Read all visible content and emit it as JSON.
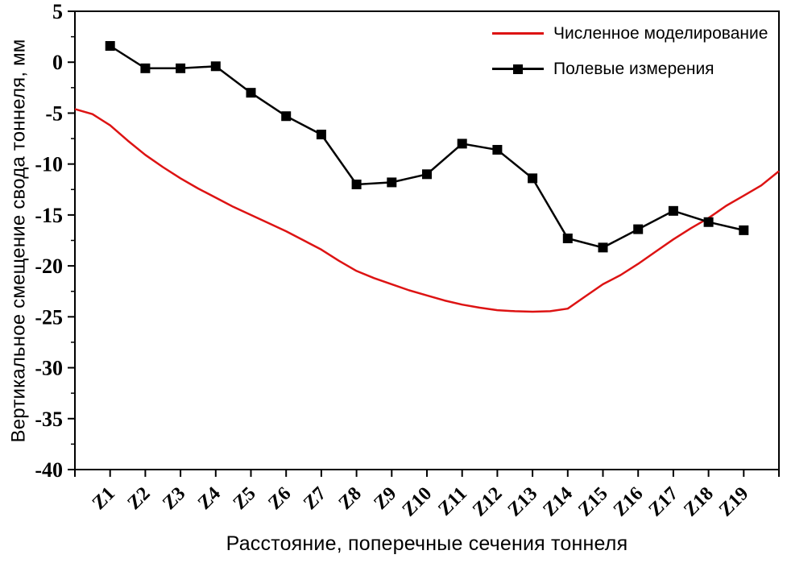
{
  "chart_data": {
    "type": "line",
    "title": "",
    "xlabel": "Расстояние, поперечные сечения тоннеля",
    "ylabel": "Вертикальное смещение свода тоннеля, мм",
    "ylim": [
      -40,
      5
    ],
    "y_major_step": 5,
    "y_minor_step": 2.5,
    "x_slots": 20,
    "grid": false,
    "legend_position": "top-right",
    "axis_color": "#000000",
    "categories": [
      "Z1",
      "Z2",
      "Z3",
      "Z4",
      "Z5",
      "Z6",
      "Z7",
      "Z8",
      "Z9",
      "Z10",
      "Z11",
      "Z12",
      "Z13",
      "Z14",
      "Z15",
      "Z16",
      "Z17",
      "Z18",
      "Z19"
    ],
    "series": [
      {
        "name": "Численное моделирование",
        "type": "smooth_line",
        "color": "#dd1313",
        "marker": "none",
        "x": [
          0,
          0.5,
          1,
          1.5,
          2,
          2.5,
          3,
          3.5,
          4,
          4.5,
          5,
          5.5,
          6,
          6.5,
          7,
          7.5,
          8,
          8.5,
          9,
          9.5,
          10,
          10.5,
          11,
          11.5,
          12,
          12.5,
          13,
          13.5,
          14,
          14.5,
          15,
          15.5,
          16,
          16.5,
          17,
          17.5,
          18,
          18.5,
          19,
          19.5,
          20
        ],
        "values": [
          -4.6,
          -5.1,
          -6.2,
          -7.7,
          -9.1,
          -10.3,
          -11.4,
          -12.4,
          -13.3,
          -14.2,
          -15.0,
          -15.8,
          -16.6,
          -17.5,
          -18.4,
          -19.5,
          -20.5,
          -21.2,
          -21.8,
          -22.4,
          -22.9,
          -23.4,
          -23.8,
          -24.1,
          -24.35,
          -24.45,
          -24.5,
          -24.45,
          -24.2,
          -23.0,
          -21.8,
          -20.9,
          -19.8,
          -18.6,
          -17.4,
          -16.3,
          -15.3,
          -14.1,
          -13.1,
          -12.1,
          -10.7
        ]
      },
      {
        "name": "Полевые измерения",
        "type": "line_markers",
        "color": "#000000",
        "marker": "square",
        "x": [
          1,
          2,
          3,
          4,
          5,
          6,
          7,
          8,
          9,
          10,
          11,
          12,
          13,
          14,
          15,
          16,
          17,
          18,
          19
        ],
        "values": [
          1.6,
          -0.6,
          -0.6,
          -0.4,
          -3.0,
          -5.3,
          -7.1,
          -12.0,
          -11.8,
          -11.0,
          -8.0,
          -8.6,
          -11.4,
          -17.3,
          -18.2,
          -16.4,
          -14.6,
          -15.7,
          -16.5
        ]
      }
    ]
  }
}
